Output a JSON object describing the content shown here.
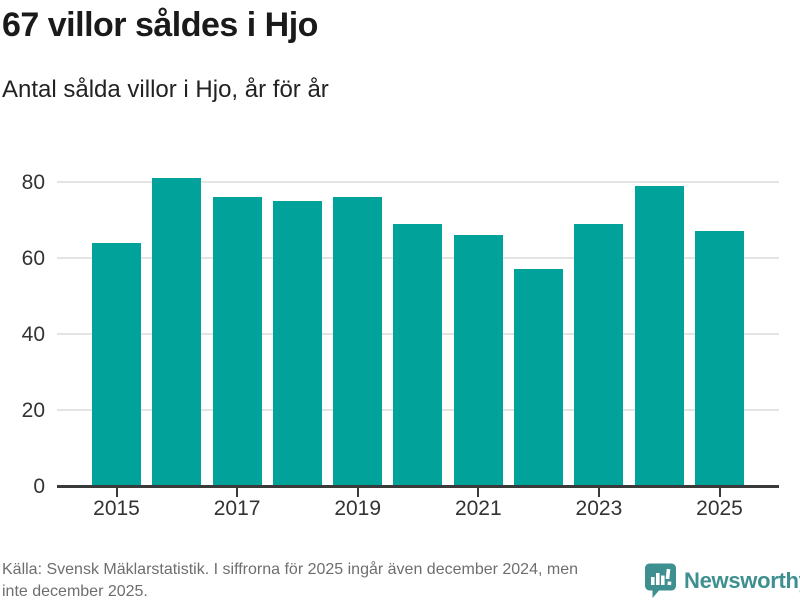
{
  "header": {
    "title": "67 villor såldes i Hjo",
    "subtitle": "Antal sålda villor i Hjo, år för år"
  },
  "chart_data": {
    "type": "bar",
    "title": "67 villor såldes i Hjo",
    "subtitle": "Antal sålda villor i Hjo, år för år",
    "categories": [
      "2015",
      "2016",
      "2017",
      "2018",
      "2019",
      "2020",
      "2021",
      "2022",
      "2023",
      "2024",
      "2025"
    ],
    "values": [
      64,
      81,
      76,
      75,
      76,
      69,
      66,
      57,
      69,
      79,
      67
    ],
    "xlabel": "",
    "ylabel": "",
    "ylim": [
      0,
      85
    ],
    "yticks": [
      0,
      20,
      40,
      60,
      80
    ],
    "xtick_labels": [
      "2015",
      "2017",
      "2019",
      "2021",
      "2023",
      "2025"
    ],
    "grid": "horizontal",
    "legend": "none",
    "colors": {
      "bar": "#00a29a",
      "axis": "#3a3a3a",
      "gridline": "#e4e4e4",
      "tick_label": "#333333"
    }
  },
  "footer": {
    "source_line1": "Källa: Svensk Mäklarstatistik. I siffrorna för 2025 ingår även december 2024, men",
    "source_line2": "inte december 2025.",
    "brand_name": "Newsworthy",
    "brand_color": "#3e8f8f",
    "logo_icon": "newsworthy-speech-bubble-chart-icon"
  }
}
